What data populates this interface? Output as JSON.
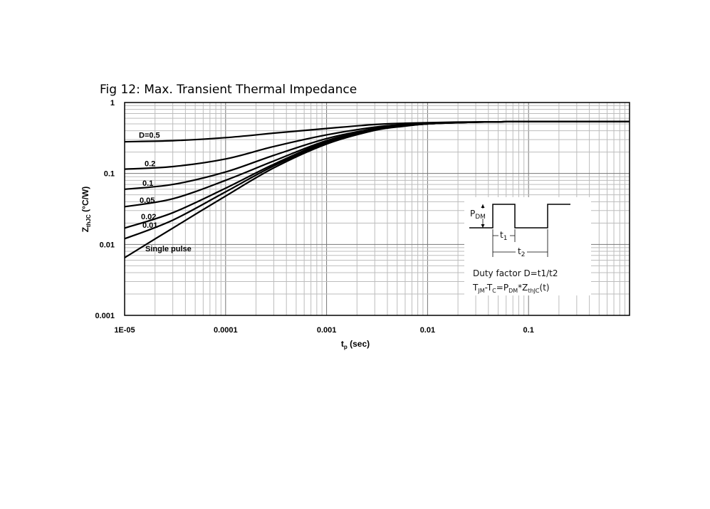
{
  "chart_data": {
    "type": "line",
    "title": "Fig 12: Max. Transient Thermal Impedance",
    "xlabel": {
      "main": "t",
      "sub": "p",
      "rest": " (sec)"
    },
    "ylabel": {
      "main": "Z",
      "sub": "thJC",
      "rest": " (°C/W)"
    },
    "x_scale": "log",
    "y_scale": "log",
    "xlim": [
      1e-05,
      1
    ],
    "ylim": [
      0.001,
      1
    ],
    "x_ticks": [
      {
        "value": 1e-05,
        "label": "1E-05"
      },
      {
        "value": 0.0001,
        "label": "0.0001"
      },
      {
        "value": 0.001,
        "label": "0.001"
      },
      {
        "value": 0.01,
        "label": "0.01"
      },
      {
        "value": 0.1,
        "label": "0.1"
      }
    ],
    "y_ticks": [
      {
        "value": 0.001,
        "label": "0.001"
      },
      {
        "value": 0.01,
        "label": "0.01"
      },
      {
        "value": 0.1,
        "label": "0.1"
      },
      {
        "value": 1,
        "label": "1"
      }
    ],
    "grid": true,
    "series": [
      {
        "name": "D=0.5",
        "x": [
          1e-05,
          3e-05,
          0.0001,
          0.0003,
          0.001,
          0.003,
          0.006,
          0.01,
          0.02,
          0.05,
          0.1,
          1
        ],
        "y": [
          0.28,
          0.29,
          0.32,
          0.37,
          0.43,
          0.49,
          0.51,
          0.52,
          0.53,
          0.535,
          0.54,
          0.54
        ]
      },
      {
        "name": "0.2",
        "x": [
          1e-05,
          3e-05,
          0.0001,
          0.0003,
          0.001,
          0.003,
          0.006,
          0.01,
          0.02,
          0.05,
          0.1,
          1
        ],
        "y": [
          0.115,
          0.125,
          0.16,
          0.24,
          0.35,
          0.45,
          0.49,
          0.51,
          0.525,
          0.535,
          0.54,
          0.54
        ]
      },
      {
        "name": "0.1",
        "x": [
          1e-05,
          3e-05,
          0.0001,
          0.0003,
          0.001,
          0.003,
          0.006,
          0.01,
          0.02,
          0.05,
          0.1,
          1
        ],
        "y": [
          0.06,
          0.07,
          0.105,
          0.18,
          0.31,
          0.43,
          0.48,
          0.505,
          0.525,
          0.535,
          0.54,
          0.54
        ]
      },
      {
        "name": "0.05",
        "x": [
          1e-05,
          3e-05,
          0.0001,
          0.0003,
          0.001,
          0.003,
          0.006,
          0.01,
          0.02,
          0.05,
          0.1,
          1
        ],
        "y": [
          0.034,
          0.044,
          0.08,
          0.15,
          0.29,
          0.42,
          0.475,
          0.5,
          0.52,
          0.535,
          0.54,
          0.54
        ]
      },
      {
        "name": "0.02",
        "x": [
          1e-05,
          3e-05,
          0.0001,
          0.0003,
          0.001,
          0.003,
          0.006,
          0.01,
          0.02,
          0.05,
          0.1,
          1
        ],
        "y": [
          0.017,
          0.028,
          0.062,
          0.135,
          0.28,
          0.415,
          0.47,
          0.5,
          0.52,
          0.535,
          0.54,
          0.54
        ]
      },
      {
        "name": "0.01",
        "x": [
          1e-05,
          3e-05,
          0.0001,
          0.0003,
          0.001,
          0.003,
          0.006,
          0.01,
          0.02,
          0.05,
          0.1,
          1
        ],
        "y": [
          0.012,
          0.022,
          0.055,
          0.128,
          0.27,
          0.41,
          0.47,
          0.5,
          0.52,
          0.535,
          0.54,
          0.54
        ]
      },
      {
        "name": "Single pulse",
        "x": [
          1e-05,
          3e-05,
          0.0001,
          0.0003,
          0.001,
          0.003,
          0.006,
          0.01,
          0.02,
          0.05,
          0.1,
          1
        ],
        "y": [
          0.0065,
          0.017,
          0.048,
          0.12,
          0.26,
          0.405,
          0.465,
          0.5,
          0.52,
          0.535,
          0.54,
          0.54
        ]
      }
    ],
    "annotations": {
      "inset": {
        "pdm": {
          "main": "P",
          "sub": "DM"
        },
        "t1": {
          "main": "t",
          "sub": "1"
        },
        "t2": {
          "main": "t",
          "sub": "2"
        },
        "duty_text": "Duty factor D=t1/t2",
        "formula": [
          {
            "text": "T",
            "sub": "JM"
          },
          {
            "text": "-T",
            "sub": "C"
          },
          {
            "text": "=P",
            "sub": "DM"
          },
          {
            "text": "*Z",
            "sub": "thJC"
          },
          {
            "text": "(t)",
            "sub": ""
          }
        ]
      }
    }
  }
}
